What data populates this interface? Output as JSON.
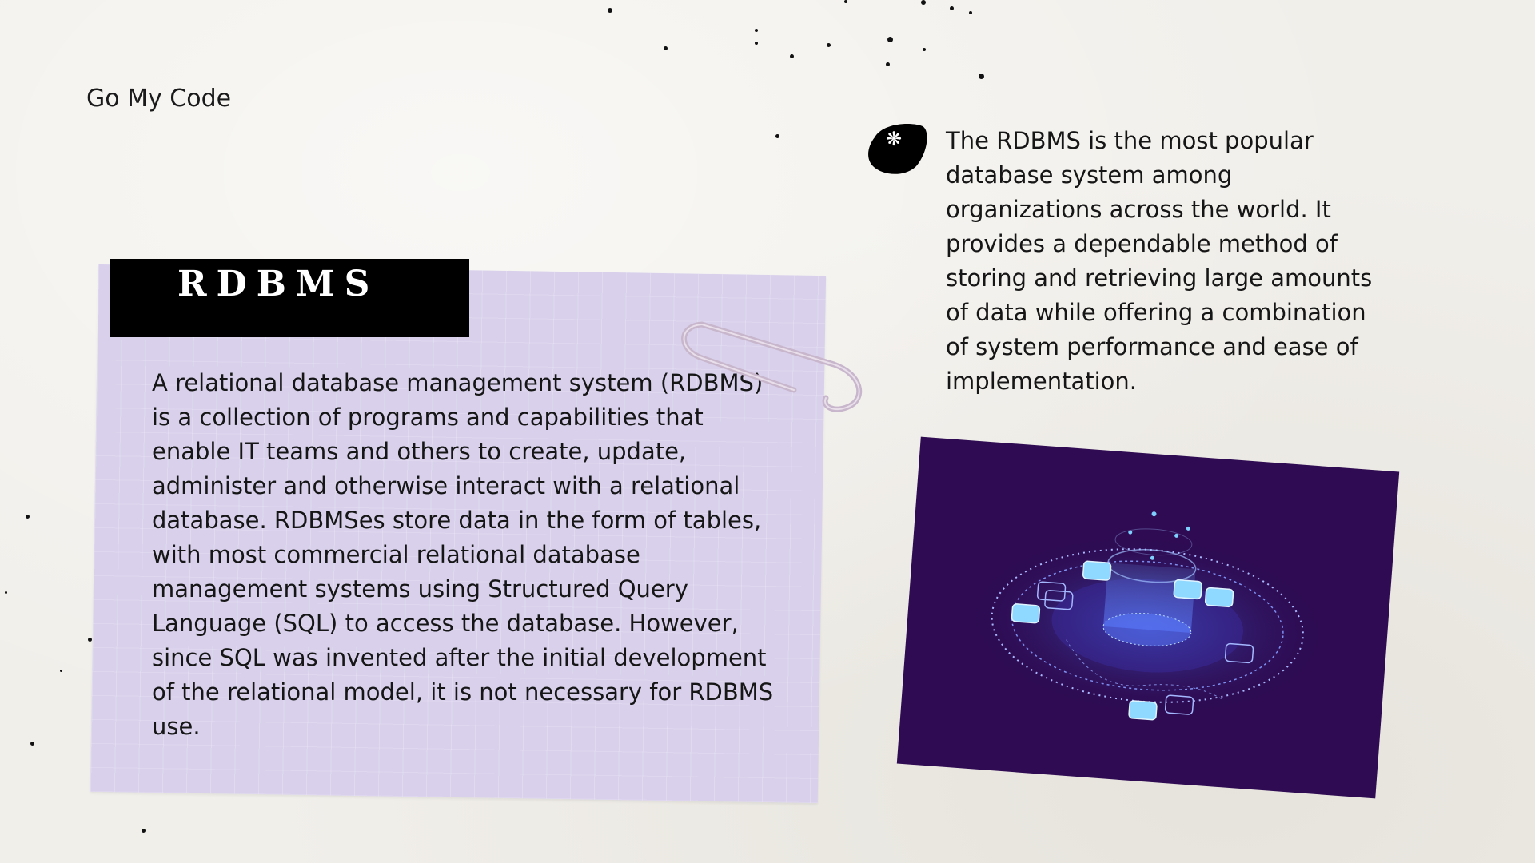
{
  "brand": "Go My Code",
  "card": {
    "title": "RDBMS",
    "body": "A relational database management system (RDBMS) is a collection of programs and capabilities that enable IT teams and others to create, update, administer and otherwise interact with a relational database. RDBMSes store data in the form of tables, with most commercial relational database management systems using Structured Query Language (SQL) to access the database. However, since SQL was invented after the initial development of the relational model, it is not necessary for RDBMS use."
  },
  "side": {
    "bullet_icon": "asterisk-icon",
    "text": "The RDBMS is the most popular database system among organizations across the world. It provides a dependable method of storing and retrieving large amounts of data while offering a combination of system performance and ease of implementation."
  },
  "colors": {
    "background": "#f1efea",
    "note": "#d9d1ec",
    "title_bar": "#000000",
    "illustration_bg": "#2e0b52",
    "accent_blue": "#7fd0ff"
  }
}
